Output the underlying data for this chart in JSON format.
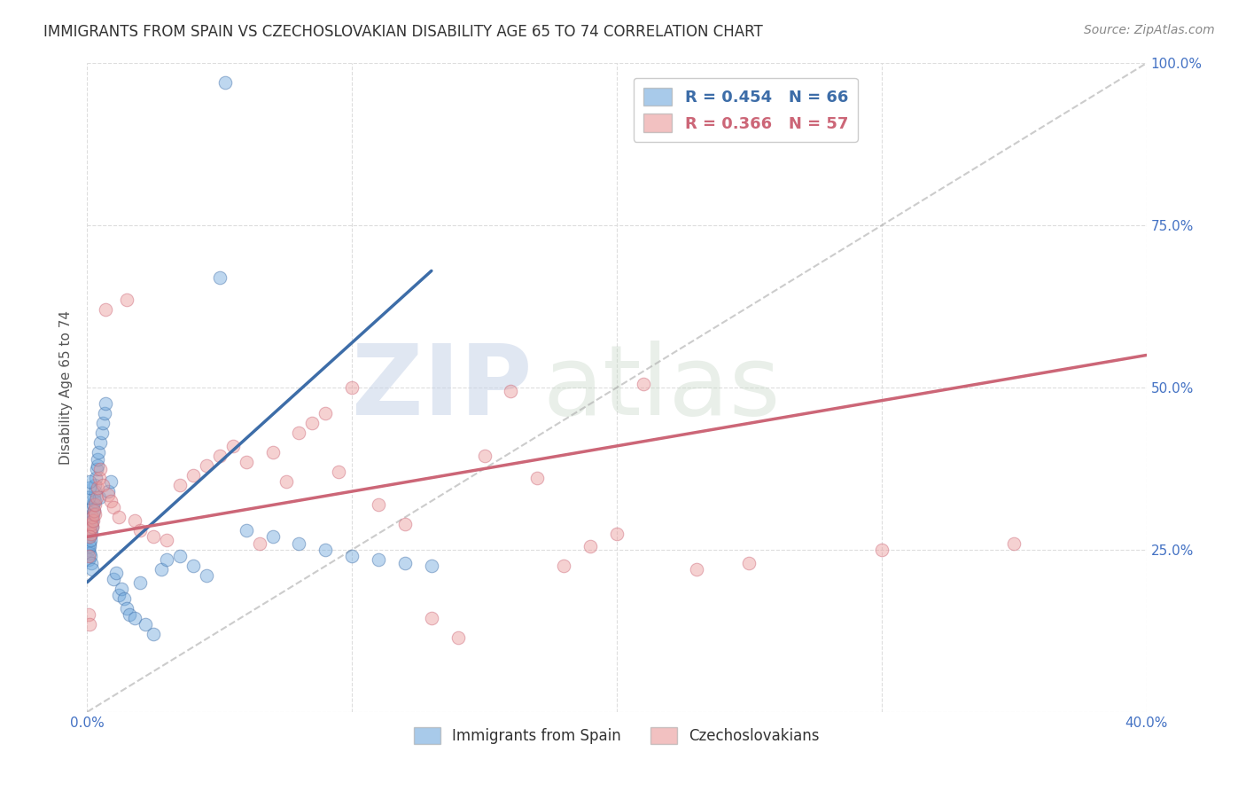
{
  "title": "IMMIGRANTS FROM SPAIN VS CZECHOSLOVAKIAN DISABILITY AGE 65 TO 74 CORRELATION CHART",
  "source": "Source: ZipAtlas.com",
  "ylabel": "Disability Age 65 to 74",
  "xlim": [
    0.0,
    40.0
  ],
  "ylim": [
    0.0,
    100.0
  ],
  "blue_R": 0.454,
  "blue_N": 66,
  "pink_R": 0.366,
  "pink_N": 57,
  "blue_color": "#6fa8dc",
  "pink_color": "#ea9999",
  "blue_line_color": "#3d6da8",
  "pink_line_color": "#cc6677",
  "legend_label_spain": "Immigrants from Spain",
  "legend_label_czech": "Czechoslovakians",
  "watermark_zip": "ZIP",
  "watermark_atlas": "atlas",
  "background_color": "#ffffff",
  "grid_color": "#dddddd",
  "right_axis_color": "#4472c4",
  "title_color": "#333333",
  "source_color": "#888888",
  "blue_scatter_x": [
    0.05,
    0.05,
    0.08,
    0.08,
    0.1,
    0.1,
    0.12,
    0.12,
    0.12,
    0.15,
    0.15,
    0.15,
    0.18,
    0.18,
    0.18,
    0.2,
    0.2,
    0.22,
    0.22,
    0.25,
    0.25,
    0.28,
    0.28,
    0.3,
    0.32,
    0.35,
    0.38,
    0.4,
    0.42,
    0.45,
    0.5,
    0.55,
    0.6,
    0.65,
    0.7,
    0.8,
    0.9,
    1.0,
    1.1,
    1.2,
    1.3,
    1.4,
    1.5,
    1.6,
    1.8,
    2.0,
    2.2,
    2.5,
    2.8,
    3.0,
    3.5,
    4.0,
    4.5,
    5.0,
    5.2,
    6.0,
    7.0,
    8.0,
    9.0,
    10.0,
    11.0,
    12.0,
    13.0,
    0.06,
    0.07,
    0.09
  ],
  "blue_scatter_y": [
    25.0,
    23.5,
    26.0,
    24.5,
    27.0,
    25.5,
    28.0,
    26.5,
    24.0,
    29.0,
    27.5,
    23.0,
    30.0,
    28.5,
    22.0,
    31.5,
    29.5,
    32.0,
    30.5,
    33.0,
    31.0,
    34.0,
    32.5,
    35.0,
    36.0,
    37.5,
    38.0,
    39.0,
    40.0,
    33.0,
    41.5,
    43.0,
    44.5,
    46.0,
    47.5,
    34.0,
    35.5,
    20.5,
    21.5,
    18.0,
    19.0,
    17.5,
    16.0,
    15.0,
    14.5,
    20.0,
    13.5,
    12.0,
    22.0,
    23.5,
    24.0,
    22.5,
    21.0,
    67.0,
    97.0,
    28.0,
    27.0,
    26.0,
    25.0,
    24.0,
    23.5,
    23.0,
    22.5,
    33.0,
    34.5,
    35.5
  ],
  "pink_scatter_x": [
    0.1,
    0.12,
    0.15,
    0.18,
    0.2,
    0.22,
    0.25,
    0.28,
    0.3,
    0.35,
    0.4,
    0.45,
    0.5,
    0.6,
    0.7,
    0.8,
    0.9,
    1.0,
    1.2,
    1.5,
    1.8,
    2.0,
    2.5,
    3.0,
    3.5,
    4.0,
    4.5,
    5.0,
    5.5,
    6.0,
    6.5,
    7.0,
    7.5,
    8.0,
    8.5,
    9.0,
    9.5,
    10.0,
    11.0,
    12.0,
    13.0,
    14.0,
    15.0,
    16.0,
    17.0,
    18.0,
    19.0,
    20.0,
    21.0,
    23.0,
    25.0,
    30.0,
    35.0,
    0.08,
    0.05,
    0.06,
    0.07
  ],
  "pink_scatter_y": [
    28.0,
    27.5,
    29.0,
    28.5,
    30.0,
    29.5,
    31.0,
    30.5,
    32.0,
    33.0,
    34.5,
    36.0,
    37.5,
    35.0,
    62.0,
    33.5,
    32.5,
    31.5,
    30.0,
    63.5,
    29.5,
    28.0,
    27.0,
    26.5,
    35.0,
    36.5,
    38.0,
    39.5,
    41.0,
    38.5,
    26.0,
    40.0,
    35.5,
    43.0,
    44.5,
    46.0,
    37.0,
    50.0,
    32.0,
    29.0,
    14.5,
    11.5,
    39.5,
    49.5,
    36.0,
    22.5,
    25.5,
    27.5,
    50.5,
    22.0,
    23.0,
    25.0,
    26.0,
    27.0,
    24.0,
    15.0,
    13.5
  ],
  "ref_line_x": [
    0.0,
    40.0
  ],
  "ref_line_y": [
    0.0,
    100.0
  ],
  "blue_regline_x": [
    0.0,
    13.0
  ],
  "blue_regline_y": [
    20.0,
    68.0
  ],
  "pink_regline_x": [
    0.0,
    40.0
  ],
  "pink_regline_y": [
    27.0,
    55.0
  ]
}
